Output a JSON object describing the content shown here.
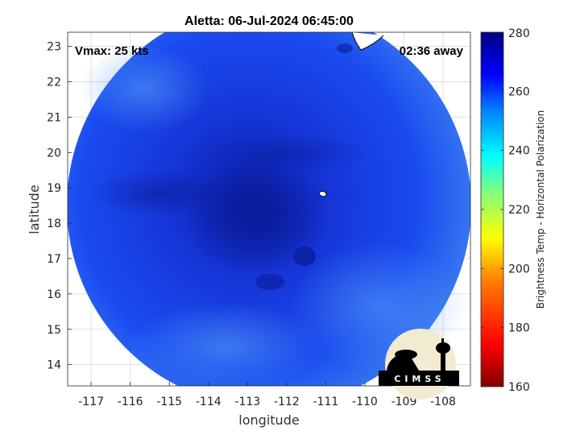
{
  "chart_data": {
    "type": "heatmap",
    "title": "Aletta: 06-Jul-2024 06:45:00",
    "xlabel": "longitude",
    "ylabel": "latitude",
    "xlim": [
      -117.6,
      -107.3
    ],
    "ylim": [
      13.4,
      23.4
    ],
    "x_ticks": [
      "-117",
      "-116",
      "-115",
      "-114",
      "-113",
      "-112",
      "-111",
      "-110",
      "-109",
      "-108"
    ],
    "y_ticks": [
      "23",
      "22",
      "21",
      "20",
      "19",
      "18",
      "17",
      "16",
      "15",
      "14"
    ],
    "grid": true,
    "annotations": {
      "left": "Vmax: 25 kts",
      "right": "02:36 away"
    },
    "colorbar": {
      "label": "Brightness Temp - Horizontal Polarization",
      "range": [
        160,
        280
      ],
      "ticks": [
        "280",
        "260",
        "240",
        "220",
        "200",
        "180",
        "160"
      ],
      "colormap": "jet",
      "colors": [
        "#800000",
        "#ff0000",
        "#ff8000",
        "#ffff00",
        "#80ff80",
        "#00ffff",
        "#0080ff",
        "#0000ff",
        "#000080"
      ]
    },
    "field": {
      "shape": "circular swath",
      "center": [
        -112.55,
        18.55
      ],
      "dominant_range": [
        255,
        272
      ],
      "coldest_region": [
        -112.9,
        18.4
      ],
      "base_color": "#1a4bf0",
      "warm_color": "#0b1fa8",
      "edge_color": "#3f84f0"
    },
    "logo_text": "CIMSS"
  }
}
